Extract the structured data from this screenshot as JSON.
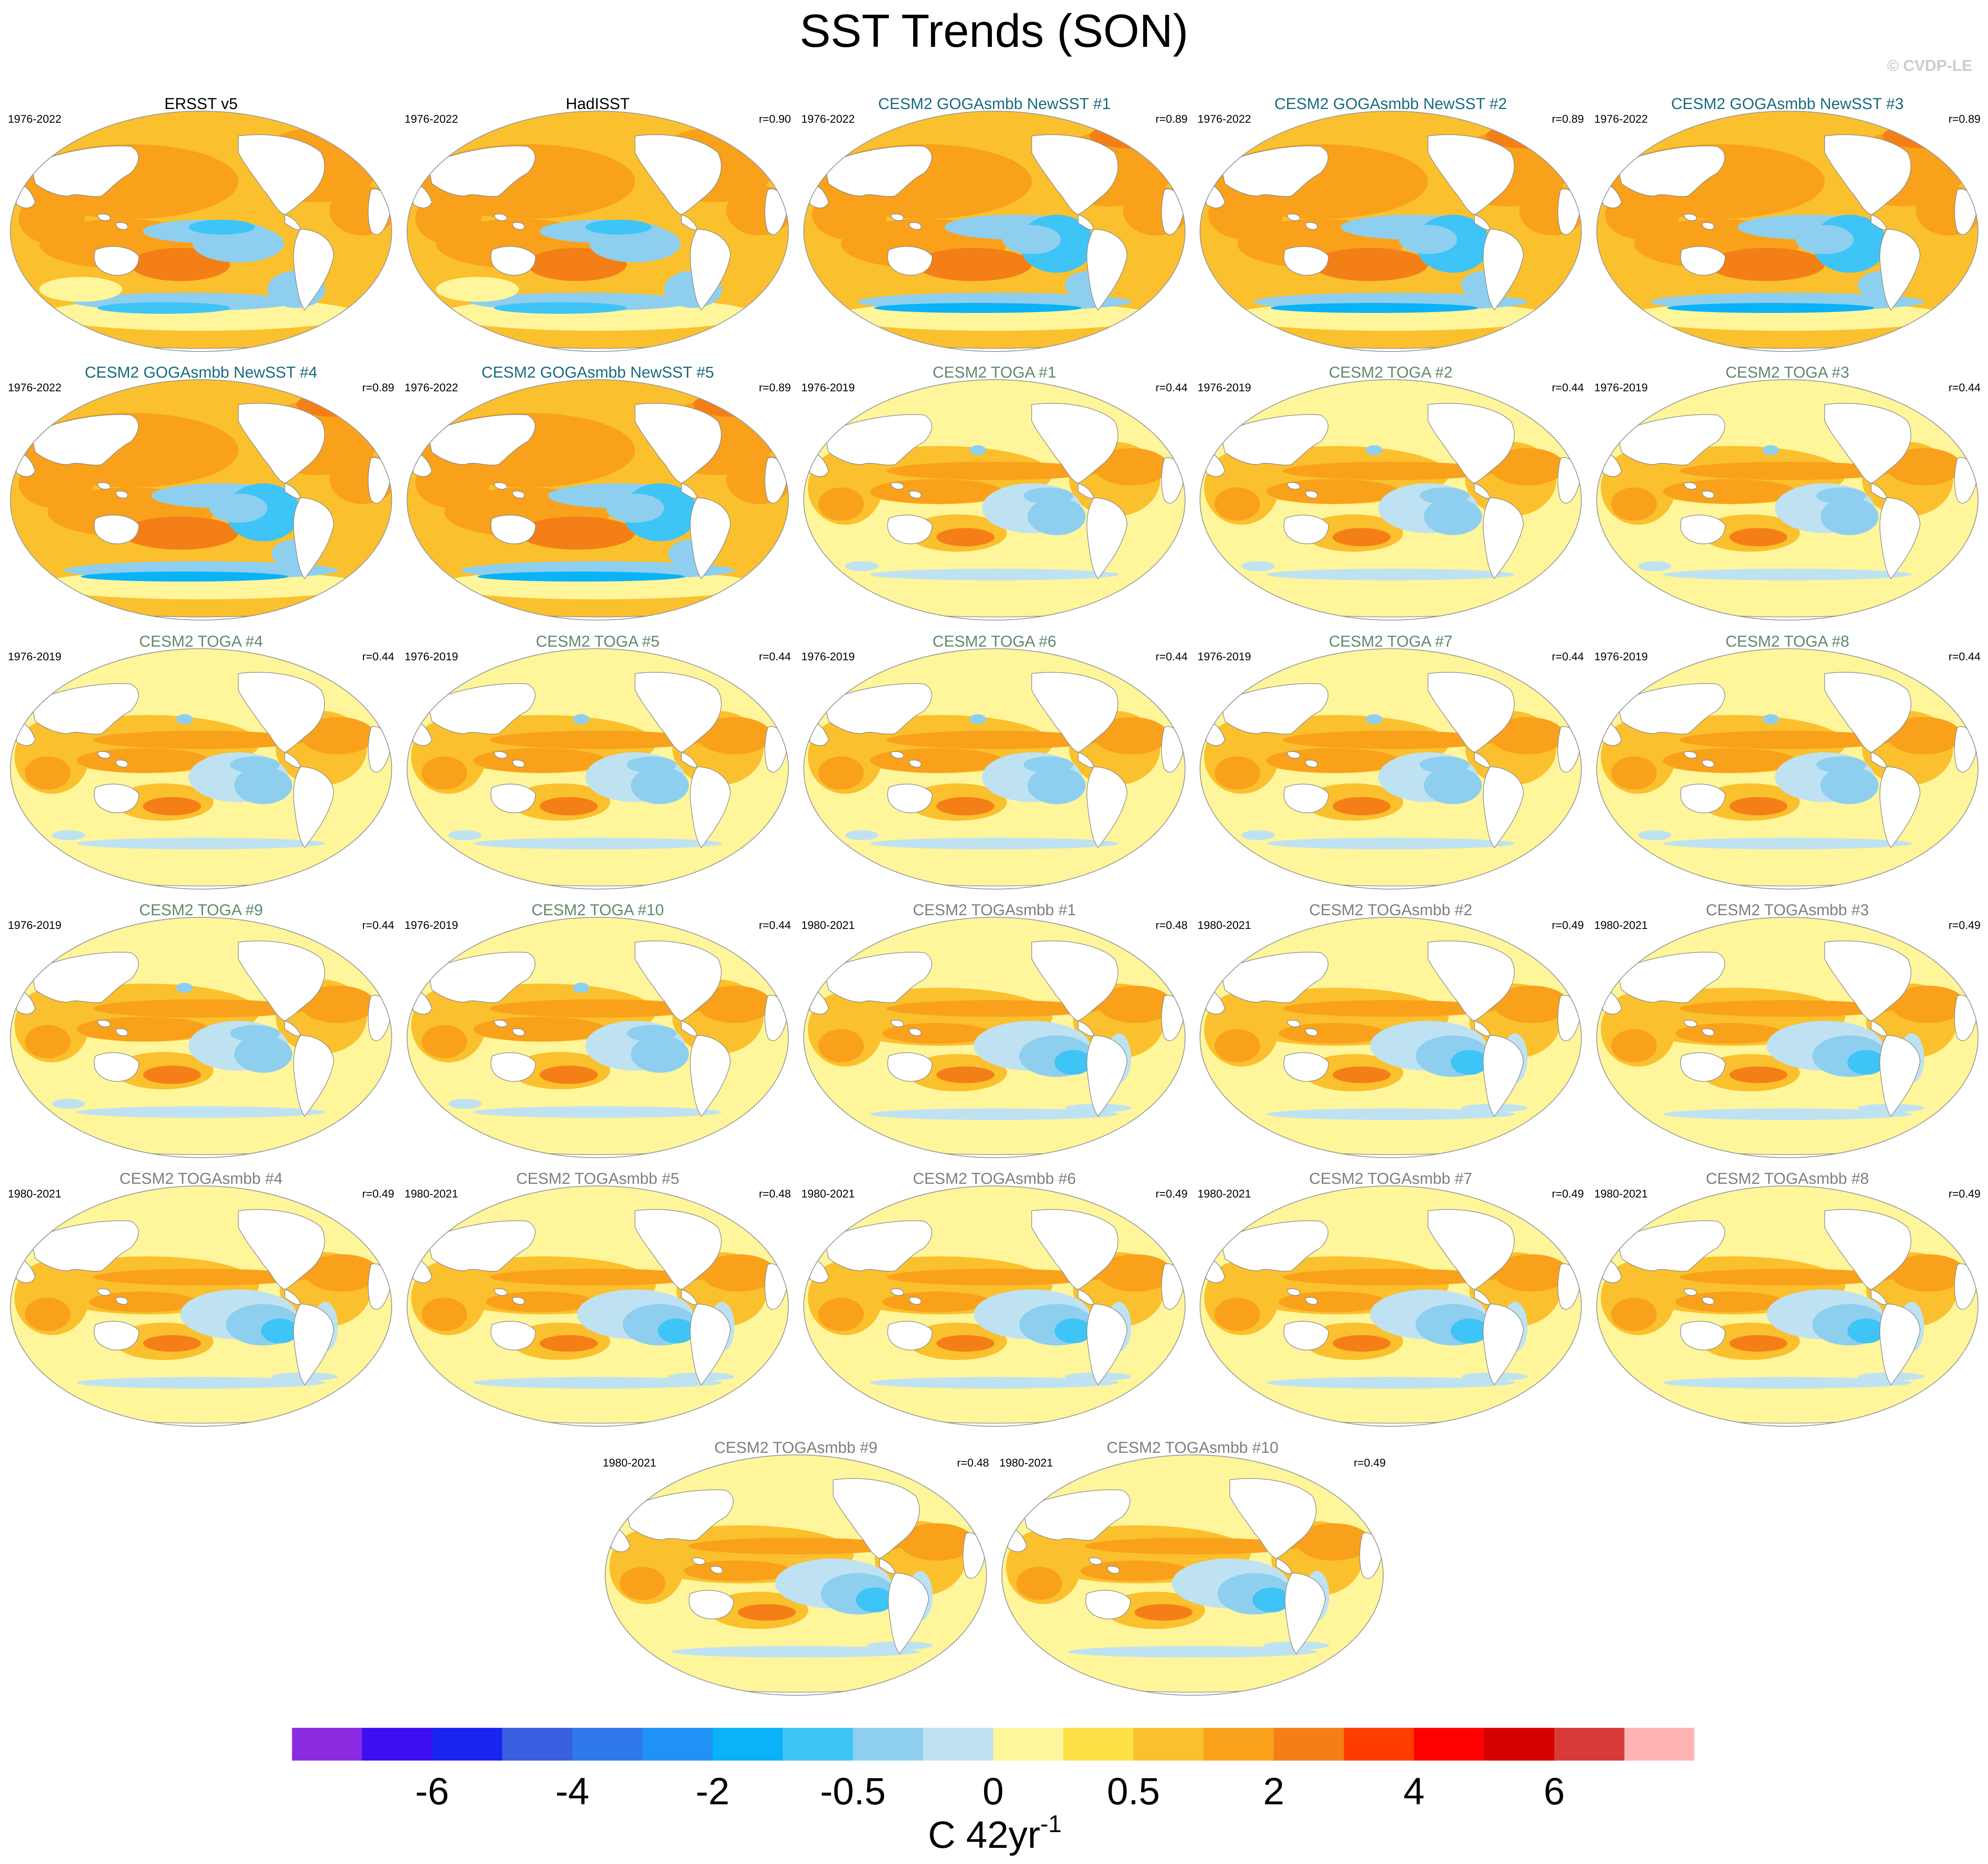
{
  "title": "SST Trends (SON)",
  "credit": "© CVDP-LE",
  "colors": {
    "obs_title": "#000000",
    "newsst_title": "#1a6b80",
    "toga_title": "#5f8b6a",
    "togasmbb_title": "#7f7f7f",
    "land": "#ffffff",
    "coast": "#888888"
  },
  "panels": [
    {
      "title": "ERSST v5",
      "group": "obs",
      "years": "1976-2022",
      "r": "",
      "pattern": "obs"
    },
    {
      "title": "HadISST",
      "group": "obs",
      "years": "1976-2022",
      "r": "r=0.90",
      "pattern": "obs"
    },
    {
      "title": "CESM2 GOGAsmbb NewSST #1",
      "group": "newsst",
      "years": "1976-2022",
      "r": "r=0.89",
      "pattern": "goga"
    },
    {
      "title": "CESM2 GOGAsmbb NewSST #2",
      "group": "newsst",
      "years": "1976-2022",
      "r": "r=0.89",
      "pattern": "goga"
    },
    {
      "title": "CESM2 GOGAsmbb NewSST #3",
      "group": "newsst",
      "years": "1976-2022",
      "r": "r=0.89",
      "pattern": "goga"
    },
    {
      "title": "CESM2 GOGAsmbb NewSST #4",
      "group": "newsst",
      "years": "1976-2022",
      "r": "r=0.89",
      "pattern": "goga"
    },
    {
      "title": "CESM2 GOGAsmbb NewSST #5",
      "group": "newsst",
      "years": "1976-2022",
      "r": "r=0.89",
      "pattern": "goga"
    },
    {
      "title": "CESM2 TOGA #1",
      "group": "toga",
      "years": "1976-2019",
      "r": "r=0.44",
      "pattern": "toga"
    },
    {
      "title": "CESM2 TOGA #2",
      "group": "toga",
      "years": "1976-2019",
      "r": "r=0.44",
      "pattern": "toga"
    },
    {
      "title": "CESM2 TOGA #3",
      "group": "toga",
      "years": "1976-2019",
      "r": "r=0.44",
      "pattern": "toga"
    },
    {
      "title": "CESM2 TOGA #4",
      "group": "toga",
      "years": "1976-2019",
      "r": "r=0.44",
      "pattern": "toga"
    },
    {
      "title": "CESM2 TOGA #5",
      "group": "toga",
      "years": "1976-2019",
      "r": "r=0.44",
      "pattern": "toga"
    },
    {
      "title": "CESM2 TOGA #6",
      "group": "toga",
      "years": "1976-2019",
      "r": "r=0.44",
      "pattern": "toga"
    },
    {
      "title": "CESM2 TOGA #7",
      "group": "toga",
      "years": "1976-2019",
      "r": "r=0.44",
      "pattern": "toga"
    },
    {
      "title": "CESM2 TOGA #8",
      "group": "toga",
      "years": "1976-2019",
      "r": "r=0.44",
      "pattern": "toga"
    },
    {
      "title": "CESM2 TOGA #9",
      "group": "toga",
      "years": "1976-2019",
      "r": "r=0.44",
      "pattern": "toga"
    },
    {
      "title": "CESM2 TOGA #10",
      "group": "toga",
      "years": "1976-2019",
      "r": "r=0.44",
      "pattern": "toga"
    },
    {
      "title": "CESM2 TOGAsmbb #1",
      "group": "togasmbb",
      "years": "1980-2021",
      "r": "r=0.48",
      "pattern": "togasmbb"
    },
    {
      "title": "CESM2 TOGAsmbb #2",
      "group": "togasmbb",
      "years": "1980-2021",
      "r": "r=0.49",
      "pattern": "togasmbb"
    },
    {
      "title": "CESM2 TOGAsmbb #3",
      "group": "togasmbb",
      "years": "1980-2021",
      "r": "r=0.49",
      "pattern": "togasmbb"
    },
    {
      "title": "CESM2 TOGAsmbb #4",
      "group": "togasmbb",
      "years": "1980-2021",
      "r": "r=0.49",
      "pattern": "togasmbb"
    },
    {
      "title": "CESM2 TOGAsmbb #5",
      "group": "togasmbb",
      "years": "1980-2021",
      "r": "r=0.48",
      "pattern": "togasmbb"
    },
    {
      "title": "CESM2 TOGAsmbb #6",
      "group": "togasmbb",
      "years": "1980-2021",
      "r": "r=0.49",
      "pattern": "togasmbb"
    },
    {
      "title": "CESM2 TOGAsmbb #7",
      "group": "togasmbb",
      "years": "1980-2021",
      "r": "r=0.49",
      "pattern": "togasmbb"
    },
    {
      "title": "CESM2 TOGAsmbb #8",
      "group": "togasmbb",
      "years": "1980-2021",
      "r": "r=0.49",
      "pattern": "togasmbb"
    },
    {
      "title": "CESM2 TOGAsmbb #9",
      "group": "togasmbb",
      "years": "1980-2021",
      "r": "r=0.48",
      "pattern": "togasmbb"
    },
    {
      "title": "CESM2 TOGAsmbb #10",
      "group": "togasmbb",
      "years": "1980-2021",
      "r": "r=0.49",
      "pattern": "togasmbb"
    }
  ],
  "chart_data": {
    "type": "heatmap",
    "title": "SST Trends (SON)",
    "projection": "global map panels (Robinson-like)",
    "colorbar": {
      "label": "C 42yr",
      "label_superscript": "-1",
      "tick_labels": [
        "-6",
        "-4",
        "-2",
        "-0.5",
        "0",
        "0.5",
        "2",
        "4",
        "6"
      ],
      "colors": [
        "#8a2be2",
        "#3b0ff2",
        "#1a24f0",
        "#3a5fe0",
        "#2f78ea",
        "#1f93f5",
        "#0ab2f7",
        "#3fc4f7",
        "#8ecfef",
        "#bfe2f2",
        "#fff59b",
        "#fde046",
        "#fbc02d",
        "#f9a11b",
        "#f57f17",
        "#ff3d00",
        "#ff0000",
        "#d50000",
        "#d83a3a",
        "#ffb3b3"
      ]
    }
  }
}
